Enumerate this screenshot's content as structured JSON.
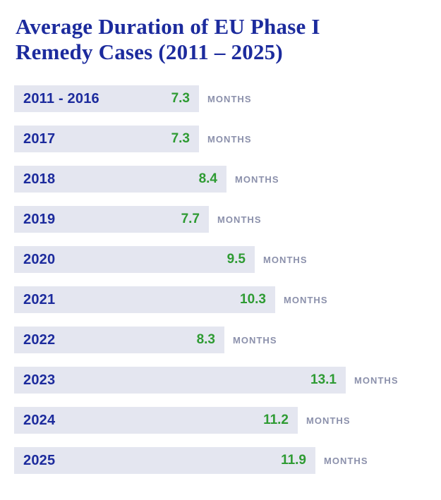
{
  "header": {
    "line1": "Average Duration of EU Phase I",
    "line2": "Remedy Cases (2011 – 2025)"
  },
  "chart_data": {
    "type": "bar",
    "orientation": "horizontal",
    "title": "Average Duration of EU Phase I Remedy Cases (2011 – 2025)",
    "unit_label": "MONTHS",
    "categories": [
      "2011 - 2016",
      "2017",
      "2018",
      "2019",
      "2020",
      "2021",
      "2022",
      "2023",
      "2024",
      "2025"
    ],
    "values": [
      7.3,
      7.3,
      8.4,
      7.7,
      9.5,
      10.3,
      8.3,
      13.1,
      11.2,
      11.9
    ],
    "value_range": [
      0,
      13.1
    ],
    "grid": false,
    "legend": false,
    "value_labels_inside_bar": true,
    "colors": {
      "title_blue": "#1c2b9d",
      "bar_background": "#e4e6f0",
      "value_green": "#2e9b33",
      "unit_gray": "#8b90ab",
      "page_background": "#ffffff"
    }
  }
}
